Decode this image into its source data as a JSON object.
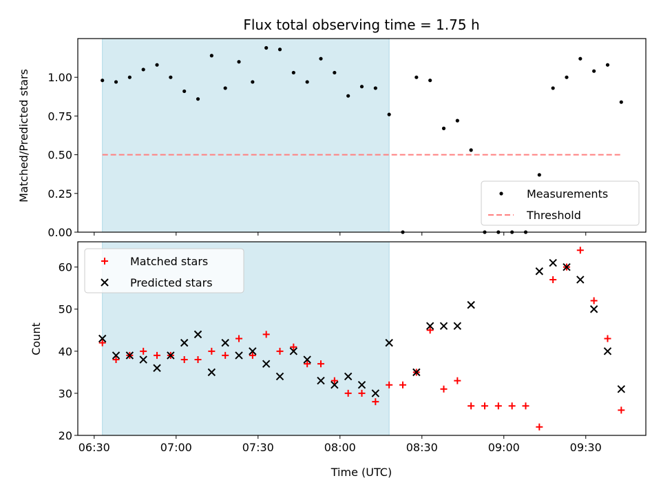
{
  "chart_data": [
    {
      "type": "scatter",
      "title": "Flux total observing time = 1.75 h",
      "ylabel": "Matched/Predicted stars",
      "xlabel": "",
      "ylim": [
        0.0,
        1.25
      ],
      "xlim": [
        "06:24",
        "09:52"
      ],
      "yticks": [
        "0.00",
        "0.25",
        "0.50",
        "0.75",
        "1.00"
      ],
      "shaded_interval": [
        "06:33",
        "08:18"
      ],
      "shade_color": "#add8e6",
      "legend_position": "lower right",
      "series": [
        {
          "name": "Measurements",
          "color": "#000000",
          "marker": "dot",
          "points": [
            [
              "06:33",
              0.98
            ],
            [
              "06:38",
              0.97
            ],
            [
              "06:43",
              1.0
            ],
            [
              "06:48",
              1.05
            ],
            [
              "06:53",
              1.08
            ],
            [
              "06:58",
              1.0
            ],
            [
              "07:03",
              0.91
            ],
            [
              "07:08",
              0.86
            ],
            [
              "07:13",
              1.14
            ],
            [
              "07:18",
              0.93
            ],
            [
              "07:23",
              1.1
            ],
            [
              "07:28",
              0.97
            ],
            [
              "07:33",
              1.19
            ],
            [
              "07:38",
              1.18
            ],
            [
              "07:43",
              1.03
            ],
            [
              "07:48",
              0.97
            ],
            [
              "07:53",
              1.12
            ],
            [
              "07:58",
              1.03
            ],
            [
              "08:03",
              0.88
            ],
            [
              "08:08",
              0.94
            ],
            [
              "08:13",
              0.93
            ],
            [
              "08:18",
              0.76
            ],
            [
              "08:23",
              0.0
            ],
            [
              "08:28",
              1.0
            ],
            [
              "08:33",
              0.98
            ],
            [
              "08:38",
              0.67
            ],
            [
              "08:43",
              0.72
            ],
            [
              "08:48",
              0.53
            ],
            [
              "08:53",
              0.0
            ],
            [
              "08:58",
              0.0
            ],
            [
              "09:03",
              0.0
            ],
            [
              "09:08",
              0.0
            ],
            [
              "09:13",
              0.37
            ],
            [
              "09:18",
              0.93
            ],
            [
              "09:23",
              1.0
            ],
            [
              "09:28",
              1.12
            ],
            [
              "09:33",
              1.04
            ],
            [
              "09:38",
              1.08
            ],
            [
              "09:43",
              0.84
            ]
          ]
        },
        {
          "name": "Threshold",
          "color": "#ff7f7f",
          "marker": "dashed-line",
          "points": [
            [
              "06:33",
              0.5
            ],
            [
              "09:43",
              0.5
            ]
          ]
        }
      ]
    },
    {
      "type": "scatter",
      "title": "",
      "ylabel": "Count",
      "xlabel": "Time (UTC)",
      "ylim": [
        20,
        66
      ],
      "xlim": [
        "06:24",
        "09:52"
      ],
      "yticks": [
        "20",
        "30",
        "40",
        "50",
        "60"
      ],
      "xticks": [
        "06:30",
        "07:00",
        "07:30",
        "08:00",
        "08:30",
        "09:00",
        "09:30"
      ],
      "shaded_interval": [
        "06:33",
        "08:18"
      ],
      "shade_color": "#add8e6",
      "legend_position": "upper left",
      "series": [
        {
          "name": "Matched stars",
          "color": "#ff0000",
          "marker": "plus",
          "points": [
            [
              "06:33",
              42
            ],
            [
              "06:38",
              38
            ],
            [
              "06:43",
              39
            ],
            [
              "06:48",
              40
            ],
            [
              "06:53",
              39
            ],
            [
              "06:58",
              39
            ],
            [
              "07:03",
              38
            ],
            [
              "07:08",
              38
            ],
            [
              "07:13",
              40
            ],
            [
              "07:18",
              39
            ],
            [
              "07:23",
              43
            ],
            [
              "07:28",
              39
            ],
            [
              "07:33",
              44
            ],
            [
              "07:38",
              40
            ],
            [
              "07:43",
              41
            ],
            [
              "07:48",
              37
            ],
            [
              "07:53",
              37
            ],
            [
              "07:58",
              33
            ],
            [
              "08:03",
              30
            ],
            [
              "08:08",
              30
            ],
            [
              "08:13",
              28
            ],
            [
              "08:18",
              32
            ],
            [
              "08:23",
              32
            ],
            [
              "08:28",
              35
            ],
            [
              "08:33",
              45
            ],
            [
              "08:38",
              31
            ],
            [
              "08:43",
              33
            ],
            [
              "08:48",
              27
            ],
            [
              "08:53",
              27
            ],
            [
              "08:58",
              27
            ],
            [
              "09:03",
              27
            ],
            [
              "09:08",
              27
            ],
            [
              "09:13",
              22
            ],
            [
              "09:18",
              57
            ],
            [
              "09:23",
              60
            ],
            [
              "09:28",
              64
            ],
            [
              "09:33",
              52
            ],
            [
              "09:38",
              43
            ],
            [
              "09:43",
              26
            ]
          ]
        },
        {
          "name": "Predicted stars",
          "color": "#000000",
          "marker": "x",
          "points": [
            [
              "06:33",
              43
            ],
            [
              "06:38",
              39
            ],
            [
              "06:43",
              39
            ],
            [
              "06:48",
              38
            ],
            [
              "06:53",
              36
            ],
            [
              "06:58",
              39
            ],
            [
              "07:03",
              42
            ],
            [
              "07:08",
              44
            ],
            [
              "07:13",
              35
            ],
            [
              "07:18",
              42
            ],
            [
              "07:23",
              39
            ],
            [
              "07:28",
              40
            ],
            [
              "07:33",
              37
            ],
            [
              "07:38",
              34
            ],
            [
              "07:43",
              40
            ],
            [
              "07:48",
              38
            ],
            [
              "07:53",
              33
            ],
            [
              "07:58",
              32
            ],
            [
              "08:03",
              34
            ],
            [
              "08:08",
              32
            ],
            [
              "08:13",
              30
            ],
            [
              "08:18",
              42
            ],
            [
              "08:28",
              35
            ],
            [
              "08:33",
              46
            ],
            [
              "08:38",
              46
            ],
            [
              "08:43",
              46
            ],
            [
              "08:48",
              51
            ],
            [
              "09:13",
              59
            ],
            [
              "09:18",
              61
            ],
            [
              "09:23",
              60
            ],
            [
              "09:28",
              57
            ],
            [
              "09:33",
              50
            ],
            [
              "09:38",
              40
            ],
            [
              "09:43",
              31
            ]
          ]
        }
      ]
    }
  ]
}
